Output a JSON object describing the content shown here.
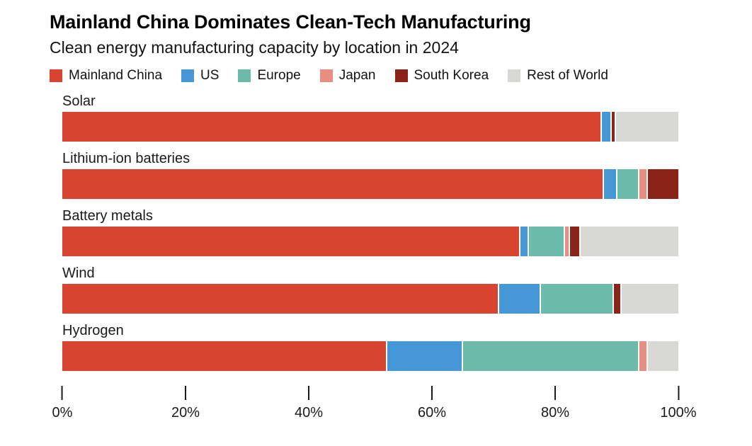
{
  "header": {
    "title": "Mainland China Dominates Clean-Tech Manufacturing",
    "subtitle": "Clean energy manufacturing capacity by location in 2024"
  },
  "chart_data": {
    "type": "bar",
    "orientation": "horizontal",
    "stacked": true,
    "unit": "percent",
    "title": "Mainland China Dominates Clean-Tech Manufacturing",
    "subtitle": "Clean energy manufacturing capacity by location in 2024",
    "categories": [
      "Solar",
      "Lithium-ion batteries",
      "Battery metals",
      "Wind",
      "Hydrogen"
    ],
    "series": [
      {
        "name": "Mainland China",
        "color": "#d8442f",
        "values": [
          88,
          88.5,
          75,
          71.3,
          53
        ]
      },
      {
        "name": "US",
        "color": "#4597d5",
        "values": [
          1.3,
          2,
          1.2,
          6.7,
          12.2
        ]
      },
      {
        "name": "Europe",
        "color": "#6cbbaa",
        "values": [
          0,
          3.3,
          5.7,
          11.7,
          28.6
        ]
      },
      {
        "name": "Japan",
        "color": "#e78d82",
        "values": [
          0,
          1.2,
          0.5,
          0,
          1.2
        ]
      },
      {
        "name": "South Korea",
        "color": "#8a2418",
        "values": [
          0.5,
          5,
          1.6,
          1,
          0
        ]
      },
      {
        "name": "Rest of World",
        "color": "#d7d7d4",
        "values": [
          10.2,
          0,
          16,
          9.3,
          5
        ]
      }
    ],
    "x_ticks": [
      "0%",
      "20%",
      "40%",
      "60%",
      "80%",
      "100%"
    ],
    "xlim": [
      0,
      100
    ],
    "legend_position": "top",
    "grid": false
  }
}
